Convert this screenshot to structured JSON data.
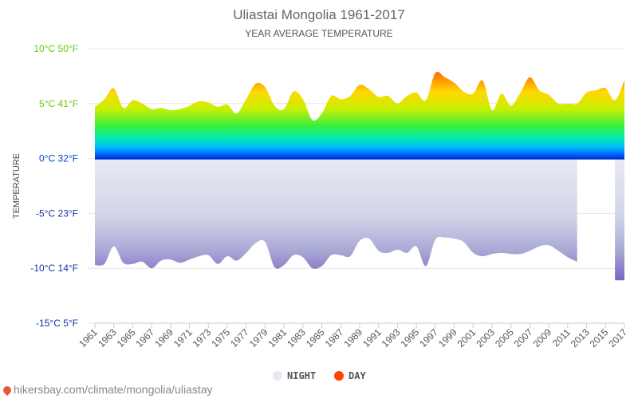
{
  "chart_data": {
    "type": "area",
    "title": "Uliastai Mongolia 1961-2017",
    "subtitle": "YEAR AVERAGE TEMPERATURE",
    "ylabel": "TEMPERATURE",
    "ylim": [
      -15,
      10
    ],
    "yticks": [
      {
        "value": 10,
        "label": "10°C 50°F"
      },
      {
        "value": 5,
        "label": "5°C 41°F"
      },
      {
        "value": 0,
        "label": "0°C 32°F"
      },
      {
        "value": -5,
        "label": "-5°C 23°F"
      },
      {
        "value": -10,
        "label": "-10°C 14°F"
      },
      {
        "value": -15,
        "label": "-15°C 5°F"
      }
    ],
    "x": [
      1961,
      1962,
      1963,
      1964,
      1965,
      1966,
      1967,
      1968,
      1969,
      1970,
      1971,
      1972,
      1973,
      1974,
      1975,
      1976,
      1977,
      1978,
      1979,
      1980,
      1981,
      1982,
      1983,
      1984,
      1985,
      1986,
      1987,
      1988,
      1989,
      1990,
      1991,
      1992,
      1993,
      1994,
      1995,
      1996,
      1997,
      1998,
      1999,
      2000,
      2001,
      2002,
      2003,
      2004,
      2005,
      2006,
      2007,
      2008,
      2009,
      2010,
      2011,
      2012,
      2013,
      2014,
      2015,
      2016,
      2017
    ],
    "xtick_labels": [
      "1961",
      "1963",
      "1965",
      "1967",
      "1969",
      "1971",
      "1973",
      "1975",
      "1977",
      "1979",
      "1981",
      "1983",
      "1985",
      "1987",
      "1989",
      "1991",
      "1993",
      "1995",
      "1997",
      "1999",
      "2001",
      "2003",
      "2005",
      "2007",
      "2009",
      "2011",
      "2013",
      "2015",
      "2017"
    ],
    "grid": true,
    "legend_position": "bottom",
    "series": [
      {
        "name": "NIGHT",
        "color": "#e6e8f2",
        "values": [
          -9.7,
          -9.6,
          -8.0,
          -9.5,
          -9.6,
          -9.4,
          -10.0,
          -9.3,
          -9.2,
          -9.5,
          -9.2,
          -8.9,
          -8.8,
          -9.6,
          -8.9,
          -9.3,
          -8.6,
          -7.7,
          -7.6,
          -9.9,
          -9.7,
          -8.8,
          -9.0,
          -10.0,
          -9.8,
          -8.8,
          -8.8,
          -8.9,
          -7.5,
          -7.3,
          -8.4,
          -8.6,
          -8.3,
          -8.6,
          -8.0,
          -9.8,
          -7.4,
          -7.2,
          -7.3,
          -7.6,
          -8.6,
          -8.9,
          -8.7,
          -8.6,
          -8.7,
          -8.7,
          -8.4,
          -8.0,
          -7.9,
          -8.4,
          -9.0,
          -9.4,
          null,
          null,
          null,
          -11.1,
          -11.1
        ]
      },
      {
        "name": "DAY",
        "color": "#ff4400",
        "values": [
          4.7,
          5.4,
          6.4,
          4.6,
          5.3,
          5.0,
          4.5,
          4.6,
          4.4,
          4.5,
          4.8,
          5.2,
          5.1,
          4.7,
          4.9,
          4.1,
          5.4,
          6.8,
          6.5,
          4.8,
          4.5,
          6.1,
          5.4,
          3.5,
          4.1,
          5.7,
          5.4,
          5.7,
          6.7,
          6.3,
          5.6,
          5.7,
          5.0,
          5.7,
          6.0,
          5.3,
          7.8,
          7.4,
          6.9,
          6.1,
          5.9,
          7.1,
          4.4,
          5.9,
          4.8,
          6.0,
          7.4,
          6.2,
          5.8,
          5.0,
          5.0,
          5.0,
          6.0,
          6.2,
          6.4,
          5.3,
          7.1
        ]
      }
    ]
  },
  "footer": {
    "url": "hikersbay.com/climate/mongolia/uliastay"
  }
}
